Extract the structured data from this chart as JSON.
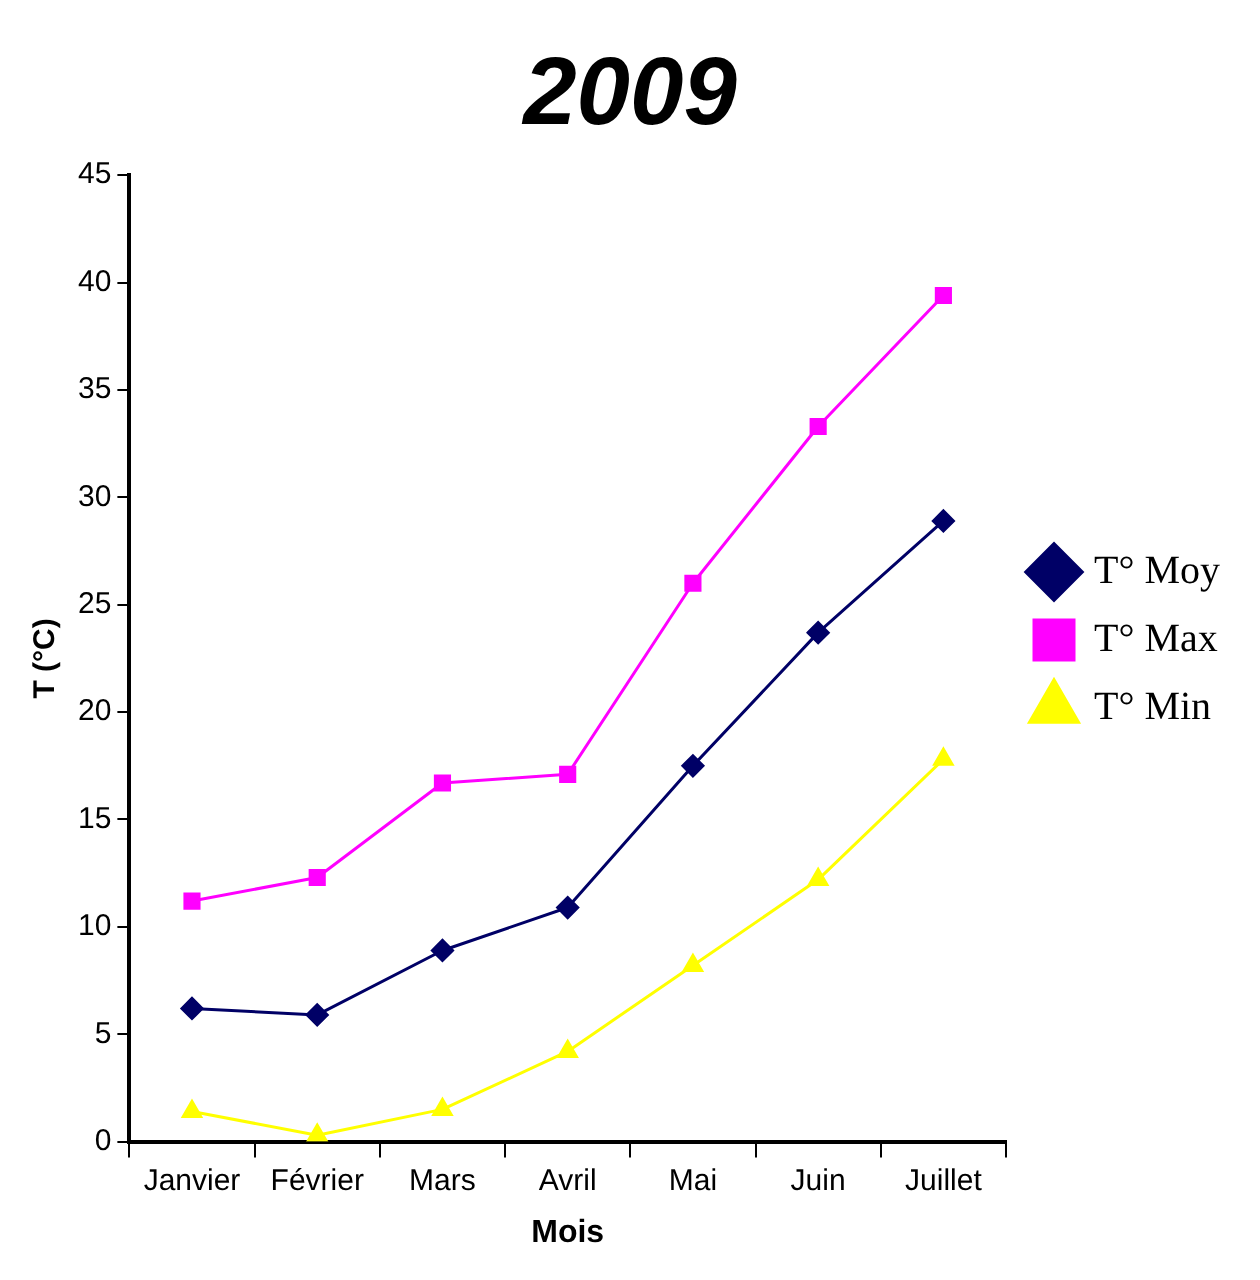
{
  "chart_data": {
    "type": "line",
    "title": "2009",
    "xlabel": "Mois",
    "ylabel": "T (°C)",
    "categories": [
      "Janvier",
      "Février",
      "Mars",
      "Avril",
      "Mai",
      "Juin",
      "Juillet"
    ],
    "series": [
      {
        "name": "T° Moy",
        "color": "#000066",
        "marker": "diamond",
        "values": [
          6.2,
          5.9,
          8.9,
          10.9,
          17.5,
          23.7,
          28.9
        ]
      },
      {
        "name": "T° Max",
        "color": "#ff00ff",
        "marker": "square",
        "values": [
          11.2,
          12.3,
          16.7,
          17.1,
          26.0,
          33.3,
          39.4
        ]
      },
      {
        "name": "T° Min",
        "color": "#ffff00",
        "marker": "triangle",
        "values": [
          1.4,
          0.3,
          1.5,
          4.2,
          8.2,
          12.2,
          17.8
        ]
      }
    ],
    "ylim": [
      0,
      45
    ],
    "yticks": [
      0,
      5,
      10,
      15,
      20,
      25,
      30,
      35,
      40,
      45
    ],
    "grid": false,
    "legend": "right",
    "line_style": "solid"
  }
}
